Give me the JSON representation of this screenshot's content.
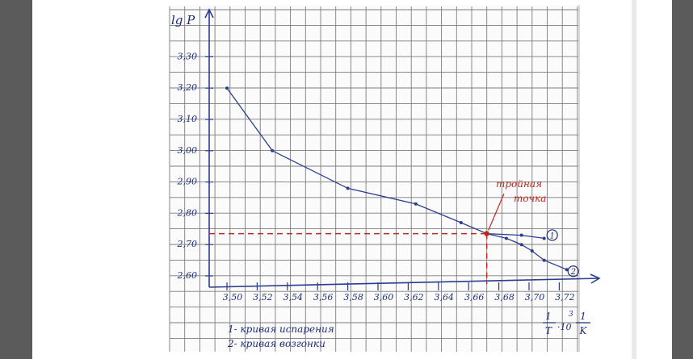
{
  "chart_data": {
    "type": "line",
    "ylabel": "lg P",
    "x_ticks": [
      "3,50",
      "3,52",
      "3,54",
      "3,56",
      "3,58",
      "3,60",
      "3,62",
      "3,64",
      "3,66",
      "3,68",
      "3,70",
      "3,72"
    ],
    "y_ticks": [
      "2,60",
      "2,70",
      "2,80",
      "2,90",
      "3,00",
      "3,10",
      "3,20",
      "3,30"
    ],
    "xlim": [
      3.495,
      3.735
    ],
    "ylim": [
      2.58,
      3.36
    ],
    "grid": true,
    "series": [
      {
        "name": "1",
        "x": [
          3.5,
          3.53,
          3.58,
          3.625,
          3.655,
          3.672,
          3.695,
          3.71
        ],
        "y": [
          3.2,
          3.0,
          2.88,
          2.83,
          2.77,
          2.735,
          2.73,
          2.72
        ]
      },
      {
        "name": "2",
        "x": [
          3.672,
          3.685,
          3.695,
          3.702,
          3.71,
          3.725
        ],
        "y": [
          2.735,
          2.72,
          2.7,
          2.68,
          2.65,
          2.62
        ]
      }
    ],
    "triple_point": {
      "x": 3.672,
      "y": 2.735
    },
    "annotation": [
      "тройная",
      "точка"
    ],
    "xlabel": {
      "num": "1",
      "den": "T",
      "power": "3",
      "unit_num": "1",
      "unit_den": "K",
      "mult": "·10"
    },
    "legend": [
      "1- кривая испарения",
      "2- кривая возгонки"
    ],
    "line_color": "#2a3d8f",
    "dash_color": "#c0281e"
  }
}
